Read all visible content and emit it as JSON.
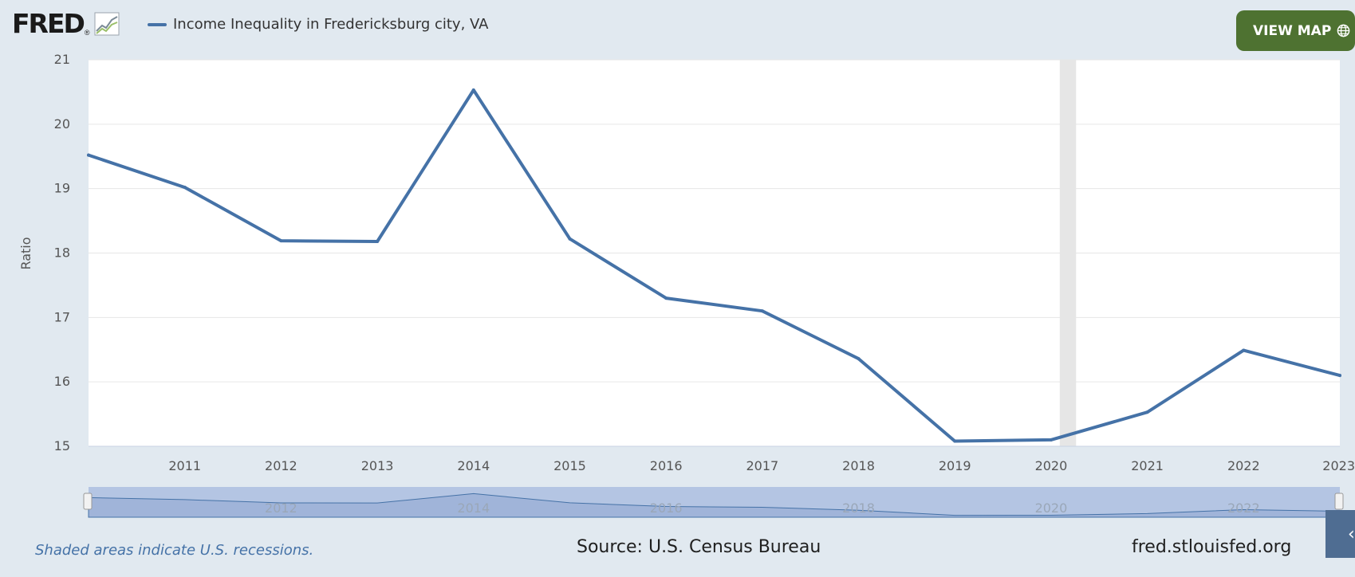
{
  "brand": {
    "logo_text": "FRED",
    "registered_mark": "®",
    "logo_icon": "line-chart-icon"
  },
  "legend": {
    "label": "Income Inequality in Fredericksburg city, VA",
    "color": "#4572a7"
  },
  "view_map": {
    "label": "VIEW MAP",
    "icon": "globe-icon",
    "color": "#4e7231"
  },
  "footer": {
    "recession_note": "Shaded areas indicate U.S. recessions.",
    "recession_note_color": "#4572a7",
    "source": "Source: U.S. Census Bureau",
    "url": "fred.stlouisfed.org"
  },
  "chart_data": {
    "type": "line",
    "title": "",
    "xlabel": "",
    "ylabel": "Ratio",
    "ylim": [
      15,
      21
    ],
    "xlim": [
      2010,
      2023
    ],
    "x_ticks": [
      2011,
      2012,
      2013,
      2014,
      2015,
      2016,
      2017,
      2018,
      2019,
      2020,
      2021,
      2022,
      2023
    ],
    "y_ticks": [
      15,
      16,
      17,
      18,
      19,
      20,
      21
    ],
    "grid": true,
    "legend_position": "top-left",
    "series": [
      {
        "name": "Income Inequality in Fredericksburg city, VA",
        "color": "#4572a7",
        "x": [
          2010,
          2011,
          2012,
          2013,
          2014,
          2015,
          2016,
          2017,
          2018,
          2019,
          2020,
          2021,
          2022,
          2023
        ],
        "values": [
          19.52,
          19.02,
          18.19,
          18.18,
          20.53,
          18.22,
          17.3,
          17.1,
          16.36,
          15.08,
          15.1,
          15.53,
          16.49,
          16.1
        ]
      }
    ],
    "recessions": [
      {
        "start": 2020.09,
        "end": 2020.26,
        "color": "#e6e6e6"
      }
    ],
    "navigator": {
      "x_labels": [
        2012,
        2014,
        2016,
        2018,
        2020,
        2022
      ],
      "fill_color": "#a0b4d9",
      "line_color": "#4572a7"
    }
  }
}
